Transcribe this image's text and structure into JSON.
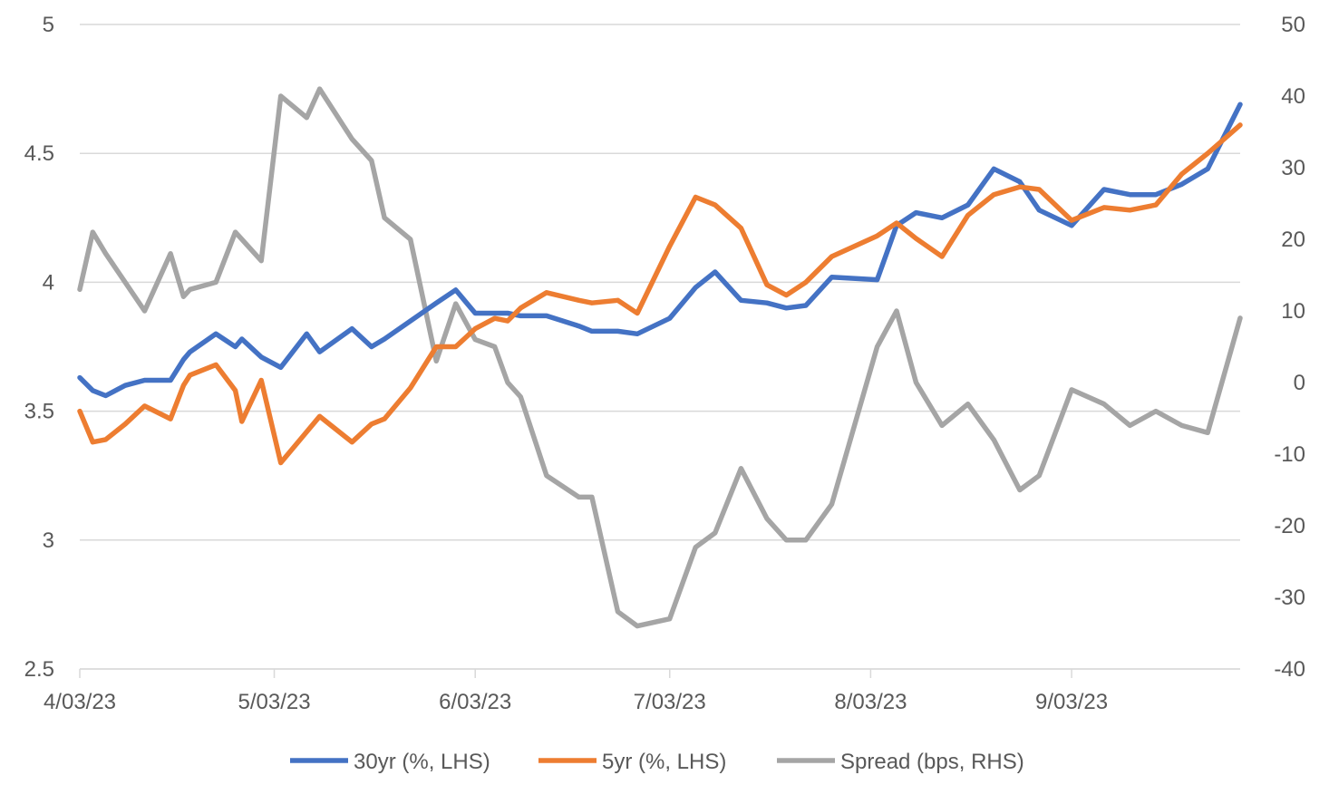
{
  "chart_data": {
    "type": "line",
    "colors": {
      "s30": "#4472c4",
      "s5": "#ed7d31",
      "spread": "#a5a5a5",
      "grid": "#d9d9d9",
      "text": "#595959"
    },
    "x_axis": {
      "type": "date",
      "min": "2023-04-03",
      "max": "2023-09-29",
      "tick_dates": [
        "2023-04-03",
        "2023-05-03",
        "2023-06-03",
        "2023-07-03",
        "2023-08-03",
        "2023-09-03"
      ],
      "tick_labels": [
        "4/03/23",
        "5/03/23",
        "6/03/23",
        "7/03/23",
        "8/03/23",
        "9/03/23"
      ]
    },
    "y_left": {
      "min": 2.5,
      "max": 5,
      "ticks": [
        2.5,
        3,
        3.5,
        4,
        4.5,
        5
      ],
      "tick_labels": [
        "2.5",
        "3",
        "3.5",
        "4",
        "4.5",
        "5"
      ]
    },
    "y_right": {
      "min": -40,
      "max": 50,
      "ticks": [
        -40,
        -30,
        -20,
        -10,
        0,
        10,
        20,
        30,
        40,
        50
      ],
      "tick_labels": [
        "-40",
        "-30",
        "-20",
        "-10",
        "0",
        "10",
        "20",
        "30",
        "40",
        "50"
      ]
    },
    "grid": true,
    "legend_position": "bottom",
    "series": [
      {
        "name": "30yr (%, LHS)",
        "axis": "left",
        "x": [
          "2023-04-03",
          "2023-04-05",
          "2023-04-07",
          "2023-04-10",
          "2023-04-13",
          "2023-04-17",
          "2023-04-19",
          "2023-04-20",
          "2023-04-24",
          "2023-04-27",
          "2023-04-28",
          "2023-05-01",
          "2023-05-04",
          "2023-05-08",
          "2023-05-10",
          "2023-05-15",
          "2023-05-18",
          "2023-05-20",
          "2023-05-24",
          "2023-05-28",
          "2023-05-31",
          "2023-06-03",
          "2023-06-06",
          "2023-06-08",
          "2023-06-10",
          "2023-06-14",
          "2023-06-19",
          "2023-06-21",
          "2023-06-25",
          "2023-06-28",
          "2023-07-03",
          "2023-07-07",
          "2023-07-10",
          "2023-07-14",
          "2023-07-18",
          "2023-07-21",
          "2023-07-24",
          "2023-07-28",
          "2023-08-04",
          "2023-08-07",
          "2023-08-10",
          "2023-08-14",
          "2023-08-18",
          "2023-08-22",
          "2023-08-26",
          "2023-08-29",
          "2023-09-03",
          "2023-09-08",
          "2023-09-12",
          "2023-09-16",
          "2023-09-20",
          "2023-09-24",
          "2023-09-29"
        ],
        "values": [
          3.63,
          3.58,
          3.56,
          3.6,
          3.62,
          3.62,
          3.7,
          3.73,
          3.8,
          3.75,
          3.78,
          3.71,
          3.67,
          3.8,
          3.73,
          3.82,
          3.75,
          3.78,
          3.85,
          3.92,
          3.97,
          3.88,
          3.88,
          3.88,
          3.87,
          3.87,
          3.83,
          3.81,
          3.81,
          3.8,
          3.86,
          3.98,
          4.04,
          3.93,
          3.92,
          3.9,
          3.91,
          4.02,
          4.01,
          4.22,
          4.27,
          4.25,
          4.3,
          4.44,
          4.39,
          4.28,
          4.22,
          4.36,
          4.34,
          4.34,
          4.38,
          4.44,
          4.69
        ]
      },
      {
        "name": "5yr (%, LHS)",
        "axis": "left",
        "x": [
          "2023-04-03",
          "2023-04-05",
          "2023-04-07",
          "2023-04-10",
          "2023-04-13",
          "2023-04-17",
          "2023-04-19",
          "2023-04-20",
          "2023-04-24",
          "2023-04-27",
          "2023-04-28",
          "2023-05-01",
          "2023-05-04",
          "2023-05-08",
          "2023-05-10",
          "2023-05-15",
          "2023-05-18",
          "2023-05-20",
          "2023-05-24",
          "2023-05-28",
          "2023-05-31",
          "2023-06-03",
          "2023-06-06",
          "2023-06-08",
          "2023-06-10",
          "2023-06-14",
          "2023-06-19",
          "2023-06-21",
          "2023-06-25",
          "2023-06-28",
          "2023-07-03",
          "2023-07-07",
          "2023-07-10",
          "2023-07-14",
          "2023-07-18",
          "2023-07-21",
          "2023-07-24",
          "2023-07-28",
          "2023-08-04",
          "2023-08-07",
          "2023-08-10",
          "2023-08-14",
          "2023-08-18",
          "2023-08-22",
          "2023-08-26",
          "2023-08-29",
          "2023-09-03",
          "2023-09-08",
          "2023-09-12",
          "2023-09-16",
          "2023-09-20",
          "2023-09-24",
          "2023-09-29"
        ],
        "values": [
          3.5,
          3.38,
          3.39,
          3.45,
          3.52,
          3.47,
          3.6,
          3.64,
          3.68,
          3.58,
          3.46,
          3.62,
          3.3,
          3.42,
          3.48,
          3.38,
          3.45,
          3.47,
          3.59,
          3.75,
          3.75,
          3.82,
          3.86,
          3.85,
          3.9,
          3.96,
          3.93,
          3.92,
          3.93,
          3.88,
          4.14,
          4.33,
          4.3,
          4.21,
          3.99,
          3.95,
          4.0,
          4.1,
          4.18,
          4.23,
          4.17,
          4.1,
          4.26,
          4.34,
          4.37,
          4.36,
          4.24,
          4.29,
          4.28,
          4.3,
          4.42,
          4.5,
          4.61
        ]
      },
      {
        "name": "Spread (bps, RHS)",
        "axis": "right",
        "x": [
          "2023-04-03",
          "2023-04-05",
          "2023-04-07",
          "2023-04-10",
          "2023-04-13",
          "2023-04-17",
          "2023-04-19",
          "2023-04-20",
          "2023-04-24",
          "2023-04-27",
          "2023-04-28",
          "2023-05-01",
          "2023-05-04",
          "2023-05-08",
          "2023-05-10",
          "2023-05-15",
          "2023-05-18",
          "2023-05-20",
          "2023-05-24",
          "2023-05-28",
          "2023-05-31",
          "2023-06-03",
          "2023-06-06",
          "2023-06-08",
          "2023-06-10",
          "2023-06-14",
          "2023-06-19",
          "2023-06-21",
          "2023-06-25",
          "2023-06-28",
          "2023-07-03",
          "2023-07-07",
          "2023-07-10",
          "2023-07-14",
          "2023-07-18",
          "2023-07-21",
          "2023-07-24",
          "2023-07-28",
          "2023-08-04",
          "2023-08-07",
          "2023-08-10",
          "2023-08-14",
          "2023-08-18",
          "2023-08-22",
          "2023-08-26",
          "2023-08-29",
          "2023-09-03",
          "2023-09-08",
          "2023-09-12",
          "2023-09-16",
          "2023-09-20",
          "2023-09-24",
          "2023-09-29"
        ],
        "values": [
          13,
          21,
          18,
          14,
          10,
          18,
          12,
          13,
          14,
          21,
          20,
          17,
          40,
          37,
          41,
          34,
          31,
          23,
          20,
          3,
          11,
          6,
          5,
          0,
          -2,
          -13,
          -16,
          -16,
          -32,
          -34,
          -33,
          -23,
          -21,
          -12,
          -19,
          -22,
          -22,
          -17,
          5,
          10,
          0,
          -6,
          -3,
          -8,
          -15,
          -13,
          -1,
          -3,
          -6,
          -4,
          -6,
          -7,
          9
        ]
      }
    ]
  }
}
